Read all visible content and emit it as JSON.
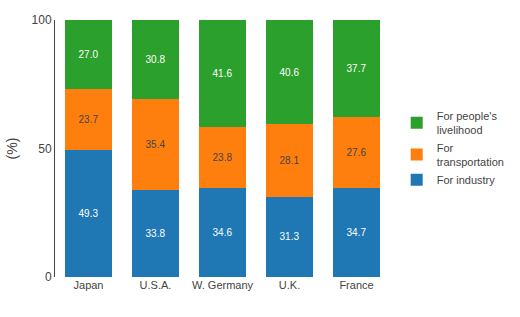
{
  "chart_data": {
    "type": "bar",
    "stacked": true,
    "ylabel": "(%)",
    "categories": [
      "Japan",
      "U.S.A.",
      "W. Germany",
      "U.K.",
      "France"
    ],
    "series": [
      {
        "name": "For industry",
        "values": [
          49.3,
          33.8,
          34.6,
          31.3,
          34.7
        ]
      },
      {
        "name": "For\ntransportation",
        "values": [
          23.7,
          35.4,
          23.8,
          28.1,
          27.6
        ]
      },
      {
        "name": "For people's\nlivelihood",
        "values": [
          27.0,
          30.8,
          41.6,
          40.6,
          37.7
        ],
        "value_labels": [
          "27.0",
          "30.8",
          "41.6",
          "40.6",
          "37.7"
        ]
      }
    ],
    "ylim": [
      0,
      100
    ],
    "yticks": [
      0,
      50,
      100
    ],
    "grid": false,
    "legend": "right",
    "data_labels": true
  }
}
